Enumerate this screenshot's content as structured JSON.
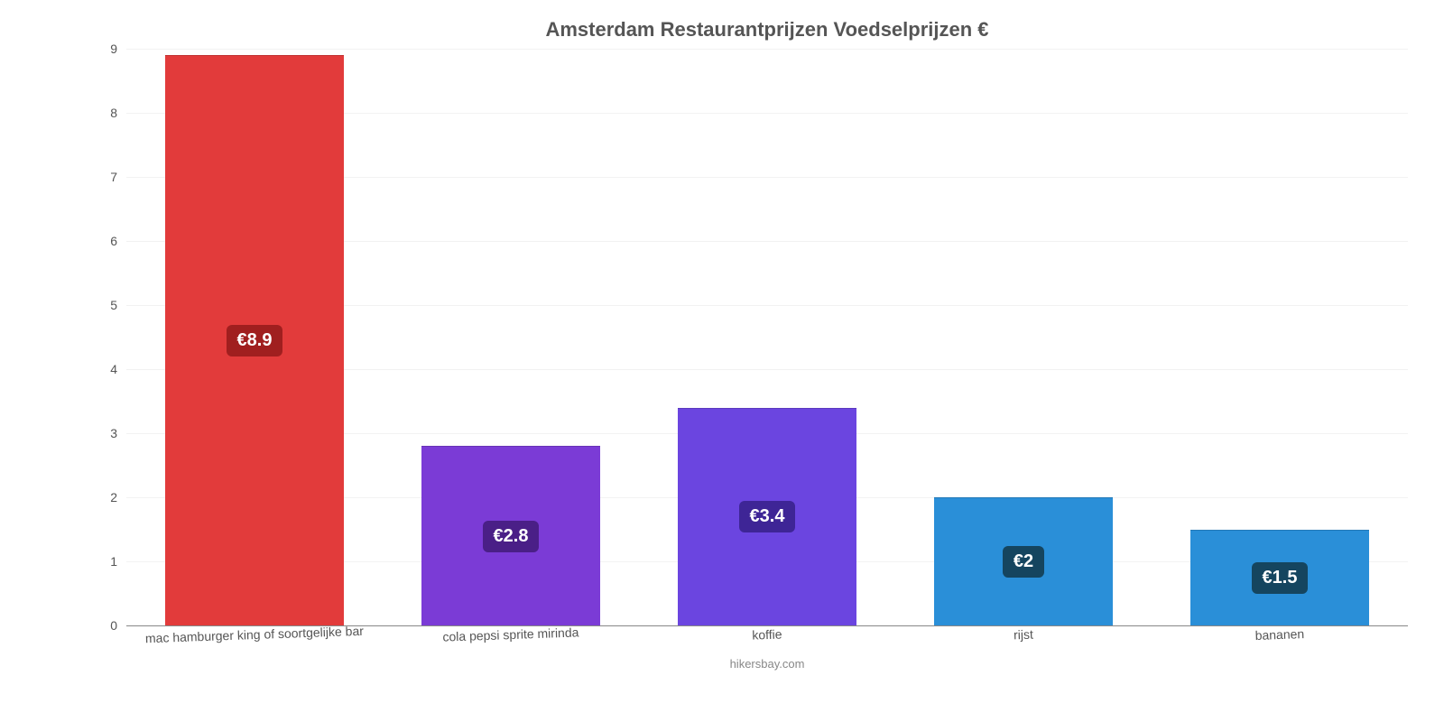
{
  "chart": {
    "type": "bar",
    "title": "Amsterdam Restaurantprijzen Voedselprijzen €",
    "title_fontsize": 22,
    "title_color": "#555555",
    "credit": "hikersbay.com",
    "background_color": "#ffffff",
    "grid_color": "#f2f2f2",
    "axis_color": "#888888",
    "label_fontsize": 14,
    "label_color": "#555555",
    "ylim": [
      0,
      9
    ],
    "yticks": [
      0,
      1,
      2,
      3,
      4,
      5,
      6,
      7,
      8,
      9
    ],
    "bar_width_pct": 70,
    "value_badge_fontsize": 20,
    "value_badge_text_color": "#ffffff",
    "categories": [
      "mac hamburger king of soortgelijke bar",
      "cola pepsi sprite mirinda",
      "koffie",
      "rijst",
      "bananen"
    ],
    "values": [
      8.9,
      2.8,
      3.4,
      2.0,
      1.5
    ],
    "value_labels": [
      "€8.9",
      "€2.8",
      "€3.4",
      "€2",
      "€1.5"
    ],
    "bar_colors": [
      "#e23b3b",
      "#7b3bd6",
      "#6b45e0",
      "#2a8fd8",
      "#2a8fd8"
    ],
    "badge_colors": [
      "#a01f1f",
      "#4a1f87",
      "#3e2596",
      "#15455f",
      "#15455f"
    ]
  }
}
